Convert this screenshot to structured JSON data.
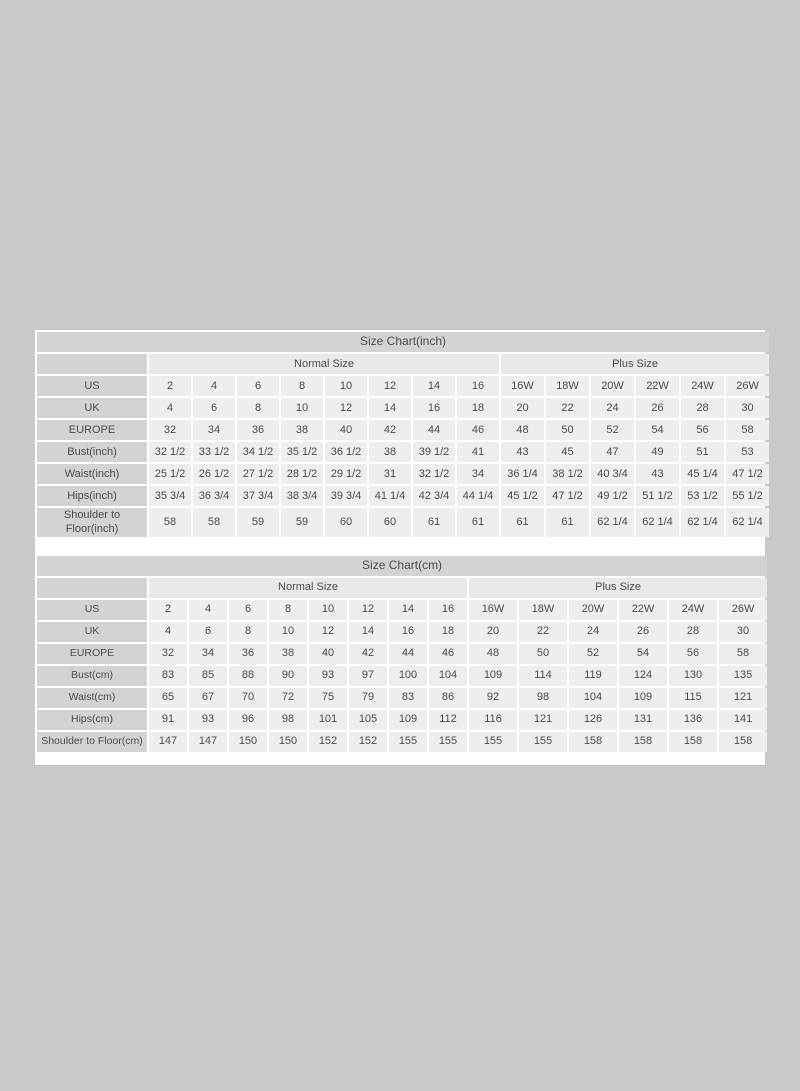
{
  "colors": {
    "page_bg": "#c9c9c9",
    "panel_bg": "#ffffff",
    "title_bg": "#d3d3d3",
    "label_bg": "#d3d3d3",
    "section_bg": "#e9e9e9",
    "cell_bg": "#eeeeee",
    "text": "#4c4c4c"
  },
  "chart_data": [
    {
      "type": "table",
      "title": "Size Chart(inch)",
      "section_headers": {
        "normal": "Normal Size",
        "plus": "Plus Size"
      },
      "normal_col_count": 8,
      "plus_col_count": 6,
      "rows": [
        {
          "label": "US",
          "values": [
            "2",
            "4",
            "6",
            "8",
            "10",
            "12",
            "14",
            "16",
            "16W",
            "18W",
            "20W",
            "22W",
            "24W",
            "26W"
          ]
        },
        {
          "label": "UK",
          "values": [
            "4",
            "6",
            "8",
            "10",
            "12",
            "14",
            "16",
            "18",
            "20",
            "22",
            "24",
            "26",
            "28",
            "30"
          ]
        },
        {
          "label": "EUROPE",
          "values": [
            "32",
            "34",
            "36",
            "38",
            "40",
            "42",
            "44",
            "46",
            "48",
            "50",
            "52",
            "54",
            "56",
            "58"
          ]
        },
        {
          "label": "Bust(inch)",
          "values": [
            "32 1/2",
            "33 1/2",
            "34 1/2",
            "35 1/2",
            "36 1/2",
            "38",
            "39 1/2",
            "41",
            "43",
            "45",
            "47",
            "49",
            "51",
            "53"
          ]
        },
        {
          "label": "Waist(inch)",
          "values": [
            "25 1/2",
            "26 1/2",
            "27 1/2",
            "28 1/2",
            "29 1/2",
            "31",
            "32 1/2",
            "34",
            "36 1/4",
            "38 1/2",
            "40 3/4",
            "43",
            "45 1/4",
            "47 1/2"
          ]
        },
        {
          "label": "Hips(inch)",
          "values": [
            "35 3/4",
            "36 3/4",
            "37 3/4",
            "38 3/4",
            "39 3/4",
            "41 1/4",
            "42 3/4",
            "44 1/4",
            "45 1/2",
            "47 1/2",
            "49 1/2",
            "51 1/2",
            "53 1/2",
            "55 1/2"
          ]
        },
        {
          "label": "Shoulder to Floor(inch)",
          "values": [
            "58",
            "58",
            "59",
            "59",
            "60",
            "60",
            "61",
            "61",
            "61",
            "61",
            "62 1/4",
            "62 1/4",
            "62 1/4",
            "62 1/4"
          ]
        }
      ]
    },
    {
      "type": "table",
      "title": "Size Chart(cm)",
      "section_headers": {
        "normal": "Normal Size",
        "plus": "Plus Size"
      },
      "normal_col_count": 8,
      "plus_col_count": 6,
      "rows": [
        {
          "label": "US",
          "values": [
            "2",
            "4",
            "6",
            "8",
            "10",
            "12",
            "14",
            "16",
            "16W",
            "18W",
            "20W",
            "22W",
            "24W",
            "26W"
          ]
        },
        {
          "label": "UK",
          "values": [
            "4",
            "6",
            "8",
            "10",
            "12",
            "14",
            "16",
            "18",
            "20",
            "22",
            "24",
            "26",
            "28",
            "30"
          ]
        },
        {
          "label": "EUROPE",
          "values": [
            "32",
            "34",
            "36",
            "38",
            "40",
            "42",
            "44",
            "46",
            "48",
            "50",
            "52",
            "54",
            "56",
            "58"
          ]
        },
        {
          "label": "Bust(cm)",
          "values": [
            "83",
            "85",
            "88",
            "90",
            "93",
            "97",
            "100",
            "104",
            "109",
            "114",
            "119",
            "124",
            "130",
            "135"
          ]
        },
        {
          "label": "Waist(cm)",
          "values": [
            "65",
            "67",
            "70",
            "72",
            "75",
            "79",
            "83",
            "86",
            "92",
            "98",
            "104",
            "109",
            "115",
            "121"
          ]
        },
        {
          "label": "Hips(cm)",
          "values": [
            "91",
            "93",
            "96",
            "98",
            "101",
            "105",
            "109",
            "112",
            "116",
            "121",
            "126",
            "131",
            "136",
            "141"
          ]
        },
        {
          "label": "Shoulder to Floor(cm)",
          "values": [
            "147",
            "147",
            "150",
            "150",
            "152",
            "152",
            "155",
            "155",
            "155",
            "155",
            "158",
            "158",
            "158",
            "158"
          ]
        }
      ]
    }
  ]
}
